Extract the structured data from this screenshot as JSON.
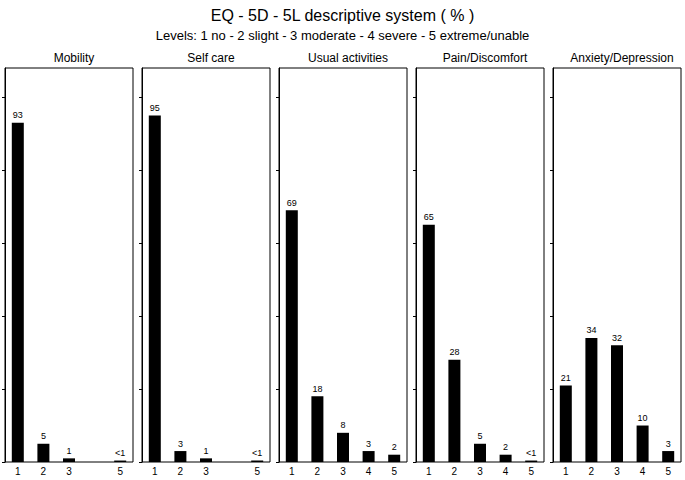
{
  "title": "EQ - 5D - 5L descriptive system ( % )",
  "subtitle": "Levels: 1 no - 2 slight - 3 moderate - 4 severe - 5 extreme/unable",
  "chart_data": [
    {
      "type": "bar",
      "title": "Mobility",
      "categories": [
        "1",
        "2",
        "3",
        null,
        "5"
      ],
      "values": [
        93,
        5,
        1,
        null,
        0.4
      ],
      "value_labels": [
        "93",
        "5",
        "1",
        null,
        "<1"
      ],
      "color": "#000000",
      "ylim": [
        0,
        108
      ],
      "yticks": [
        0,
        20,
        40,
        60,
        80,
        100
      ],
      "grid": false,
      "data_labels": true,
      "tick_labels": "x"
    },
    {
      "type": "bar",
      "title": "Self care",
      "categories": [
        "1",
        "2",
        "3",
        null,
        "5"
      ],
      "values": [
        95,
        3,
        1,
        null,
        0.4
      ],
      "value_labels": [
        "95",
        "3",
        "1",
        null,
        "<1"
      ],
      "color": "#000000",
      "ylim": [
        0,
        108
      ],
      "yticks": [
        0,
        20,
        40,
        60,
        80,
        100
      ],
      "grid": false,
      "data_labels": true,
      "tick_labels": "x"
    },
    {
      "type": "bar",
      "title": "Usual activities",
      "categories": [
        "1",
        "2",
        "3",
        "4",
        "5"
      ],
      "values": [
        69,
        18,
        8,
        3,
        2
      ],
      "value_labels": [
        "69",
        "18",
        "8",
        "3",
        "2"
      ],
      "color": "#000000",
      "ylim": [
        0,
        108
      ],
      "yticks": [
        0,
        20,
        40,
        60,
        80,
        100
      ],
      "grid": false,
      "data_labels": true,
      "tick_labels": "x"
    },
    {
      "type": "bar",
      "title": "Pain/Discomfort",
      "categories": [
        "1",
        "2",
        "3",
        "4",
        "5"
      ],
      "values": [
        65,
        28,
        5,
        2,
        0.4
      ],
      "value_labels": [
        "65",
        "28",
        "5",
        "2",
        "<1"
      ],
      "color": "#000000",
      "ylim": [
        0,
        108
      ],
      "yticks": [
        0,
        20,
        40,
        60,
        80,
        100
      ],
      "grid": false,
      "data_labels": true,
      "tick_labels": "x"
    },
    {
      "type": "bar",
      "title": "Anxiety/Depression",
      "categories": [
        "1",
        "2",
        "3",
        "4",
        "5"
      ],
      "values": [
        21,
        34,
        32,
        10,
        3
      ],
      "value_labels": [
        "21",
        "34",
        "32",
        "10",
        "3"
      ],
      "color": "#000000",
      "ylim": [
        0,
        108
      ],
      "yticks": [
        0,
        20,
        40,
        60,
        80,
        100
      ],
      "grid": false,
      "data_labels": true,
      "tick_labels": "x"
    }
  ]
}
